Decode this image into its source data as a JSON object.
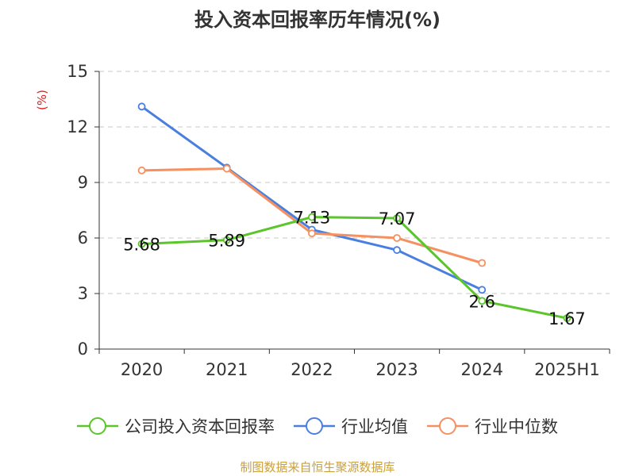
{
  "chart_data": {
    "type": "line",
    "title": "投入资本回报率历年情况(%)",
    "ylabel": "(%)",
    "xlabel": "",
    "categories": [
      "2020",
      "2021",
      "2022",
      "2023",
      "2024",
      "2025H1"
    ],
    "ylim": [
      0,
      15
    ],
    "yticks": [
      0,
      3,
      6,
      9,
      12,
      15
    ],
    "grid": true,
    "legend_position": "bottom",
    "series": [
      {
        "name": "公司投入资本回报率",
        "color": "#5ac62b",
        "values": [
          5.68,
          5.89,
          7.13,
          7.07,
          2.6,
          1.67
        ],
        "labels": [
          "5.68",
          "5.89",
          "7.13",
          "7.07",
          "2.6",
          "1.67"
        ]
      },
      {
        "name": "行业均值",
        "color": "#4a7fe0",
        "values": [
          13.1,
          9.8,
          6.45,
          5.35,
          3.2,
          null
        ]
      },
      {
        "name": "行业中位数",
        "color": "#f59060",
        "values": [
          9.65,
          9.75,
          6.25,
          6.0,
          4.65,
          null
        ]
      }
    ]
  },
  "source_text": "制图数据来自恒生聚源数据库"
}
